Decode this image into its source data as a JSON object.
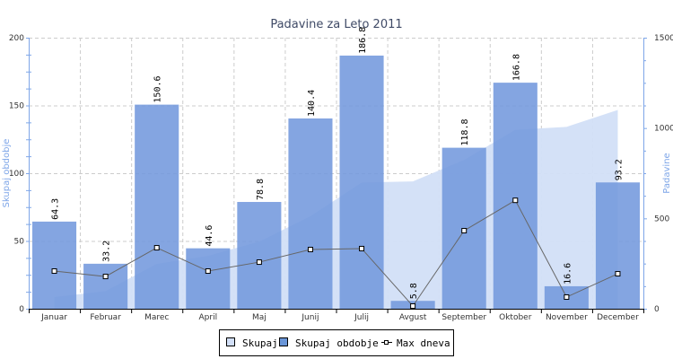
{
  "chart_data": {
    "type": "bar",
    "title": "Padavine za Leto 2011",
    "categories": [
      "Januar",
      "Februar",
      "Marec",
      "April",
      "Maj",
      "Junij",
      "Julij",
      "Avgust",
      "September",
      "Oktober",
      "November",
      "December"
    ],
    "series": [
      {
        "name": "Skupaj",
        "type": "area",
        "axis": "right",
        "values": [
          64.3,
          97.5,
          248.1,
          292.7,
          371.5,
          511.9,
          698.7,
          704.5,
          823.3,
          990.1,
          1006.7,
          1099.9
        ]
      },
      {
        "name": "Skupaj obdobje",
        "type": "bar",
        "axis": "left",
        "values": [
          64.3,
          33.2,
          150.6,
          44.6,
          78.8,
          140.4,
          186.8,
          5.8,
          118.8,
          166.8,
          16.6,
          93.2
        ],
        "labels": [
          "64.3",
          "33.2",
          "150.6",
          "44.6",
          "78.8",
          "140.4",
          "186.8",
          "5.8",
          "118.8",
          "166.8",
          "16.6",
          "93.2"
        ]
      },
      {
        "name": "Max dneva",
        "type": "line",
        "axis": "left",
        "values": [
          27.8,
          23.8,
          45,
          27.8,
          34.4,
          43.7,
          44.4,
          2,
          57.6,
          80,
          8.6,
          25.8
        ]
      }
    ],
    "ylabel": "Skupaj obdobje",
    "y2label": "Padavine",
    "ylim": [
      0,
      200
    ],
    "y2lim": [
      0,
      1500
    ],
    "yticks": [
      "0",
      "50",
      "100",
      "150",
      "200"
    ],
    "y2ticks": [
      "0",
      "500",
      "1000",
      "1500"
    ],
    "grid": true,
    "legend": "bottom-center",
    "colors": {
      "bar": "#7399dd",
      "area": "#d2dff7",
      "line": "#666666",
      "axis": "#7ea6e8"
    }
  }
}
